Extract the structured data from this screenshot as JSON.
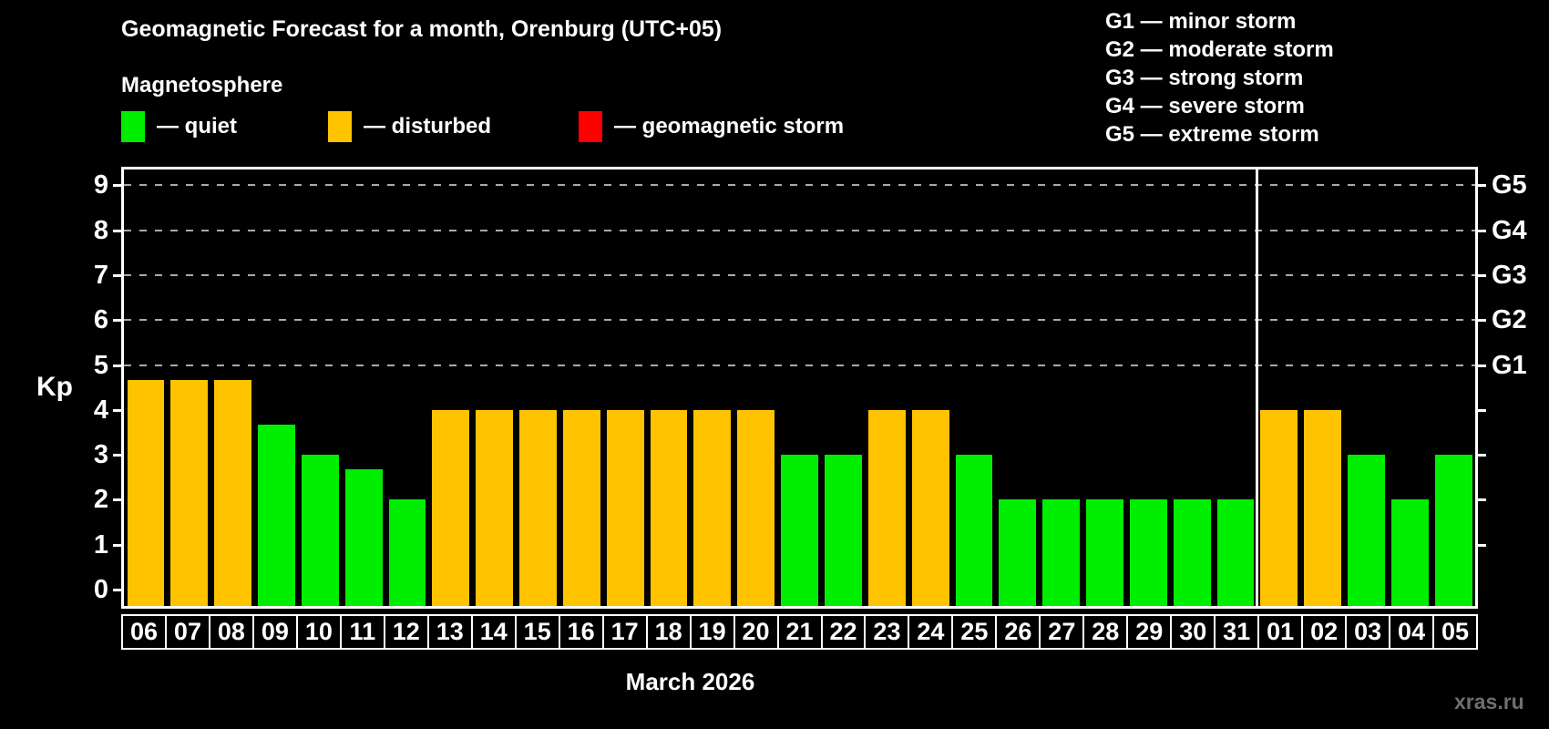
{
  "header": {
    "title": "Geomagnetic Forecast for a month, Orenburg (UTC+05)",
    "subtitle": "Magnetosphere",
    "legend": [
      {
        "name": "quiet",
        "label": "— quiet",
        "color": "#00ee00"
      },
      {
        "name": "disturbed",
        "label": "— disturbed",
        "color": "#ffc300"
      },
      {
        "name": "storm",
        "label": "— geomagnetic storm",
        "color": "#ff0000"
      }
    ],
    "g_scale_legend": [
      "G1 — minor storm",
      "G2 — moderate storm",
      "G3 — strong storm",
      "G4 — severe storm",
      "G5 — extreme storm"
    ]
  },
  "chart_data": {
    "type": "bar",
    "title": "Geomagnetic Forecast for a month, Orenburg (UTC+05)",
    "ylabel": "Kp",
    "xlabel": "March 2026",
    "month_label": "March 2026",
    "ylim": [
      0,
      9
    ],
    "grid": "dashed horizontal lines at Kp 5-9 only",
    "yticks": [
      0,
      1,
      2,
      3,
      4,
      5,
      6,
      7,
      8,
      9
    ],
    "gridlines": [
      5,
      6,
      7,
      8,
      9
    ],
    "right_ticks": [
      1,
      2,
      3,
      4,
      5,
      6,
      7,
      8,
      9
    ],
    "right_axis": [
      {
        "value": 5,
        "label": "G1"
      },
      {
        "value": 6,
        "label": "G2"
      },
      {
        "value": 7,
        "label": "G3"
      },
      {
        "value": 8,
        "label": "G4"
      },
      {
        "value": 9,
        "label": "G5"
      }
    ],
    "categories": [
      "06",
      "07",
      "08",
      "09",
      "10",
      "11",
      "12",
      "13",
      "14",
      "15",
      "16",
      "17",
      "18",
      "19",
      "20",
      "21",
      "22",
      "23",
      "24",
      "25",
      "26",
      "27",
      "28",
      "29",
      "30",
      "31",
      "01",
      "02",
      "03",
      "04",
      "05"
    ],
    "values": [
      4.67,
      4.67,
      4.67,
      3.67,
      3,
      2.67,
      2,
      4,
      4,
      4,
      4,
      4,
      4,
      4,
      4,
      3,
      3,
      4,
      4,
      3,
      2,
      2,
      2,
      2,
      2,
      2,
      4,
      4,
      3,
      2,
      3
    ],
    "statuses": [
      "disturbed",
      "disturbed",
      "disturbed",
      "quiet",
      "quiet",
      "quiet",
      "quiet",
      "disturbed",
      "disturbed",
      "disturbed",
      "disturbed",
      "disturbed",
      "disturbed",
      "disturbed",
      "disturbed",
      "quiet",
      "quiet",
      "disturbed",
      "disturbed",
      "quiet",
      "quiet",
      "quiet",
      "quiet",
      "quiet",
      "quiet",
      "quiet",
      "disturbed",
      "disturbed",
      "quiet",
      "quiet",
      "quiet"
    ],
    "status_colors": {
      "quiet": "#00ee00",
      "disturbed": "#ffc300",
      "storm": "#ff0000"
    },
    "month_separator_after_index": 25
  },
  "footer": {
    "watermark": "xras.ru"
  }
}
